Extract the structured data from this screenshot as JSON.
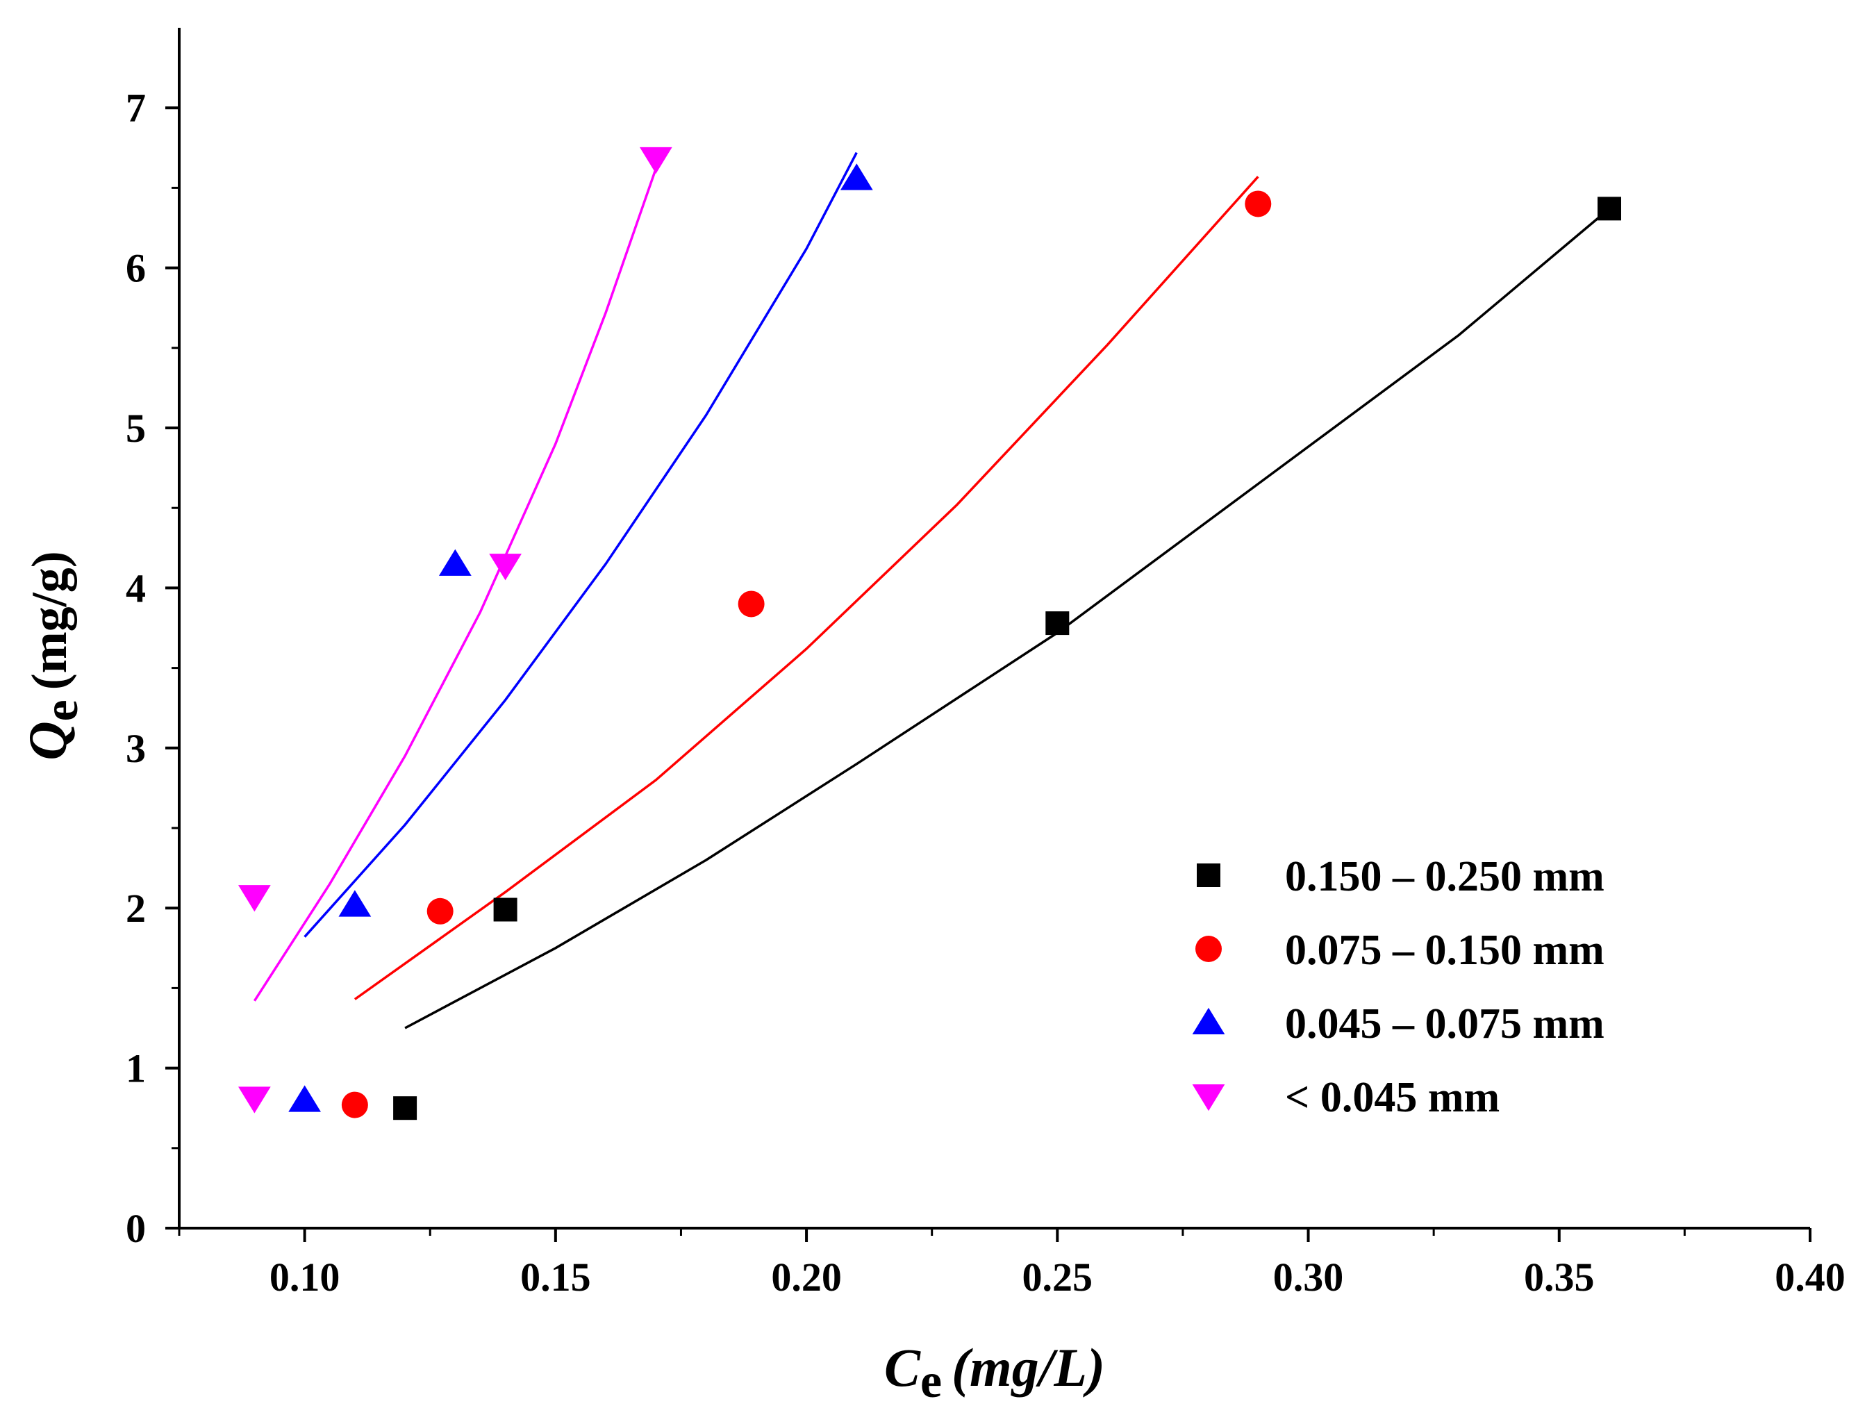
{
  "chart_data": {
    "type": "scatter",
    "title": "",
    "xlabel": {
      "symbol": "C",
      "subscript": "e",
      "unit": "(mg/L)"
    },
    "ylabel": {
      "symbol": "Q",
      "subscript": "e",
      "unit": "(mg/g)"
    },
    "xlim": [
      0.075,
      0.4
    ],
    "ylim": [
      0,
      7.5
    ],
    "xticks": [
      0.1,
      0.15,
      0.2,
      0.25,
      0.3,
      0.35,
      0.4
    ],
    "xtick_labels": [
      "0.10",
      "0.15",
      "0.20",
      "0.25",
      "0.30",
      "0.35",
      "0.40"
    ],
    "yticks": [
      0,
      1,
      2,
      3,
      4,
      5,
      6,
      7
    ],
    "ytick_labels": [
      "0",
      "1",
      "2",
      "3",
      "4",
      "5",
      "6",
      "7"
    ],
    "grid": false,
    "legend_position": "bottom-right",
    "series": [
      {
        "name": "0.150 – 0.250 mm",
        "color": "#000000",
        "marker": "square",
        "points": [
          {
            "x": 0.12,
            "y": 0.75
          },
          {
            "x": 0.14,
            "y": 1.99
          },
          {
            "x": 0.25,
            "y": 3.78
          },
          {
            "x": 0.36,
            "y": 6.37
          }
        ],
        "fit": [
          {
            "x": 0.12,
            "y": 1.25
          },
          {
            "x": 0.15,
            "y": 1.75
          },
          {
            "x": 0.18,
            "y": 2.3
          },
          {
            "x": 0.21,
            "y": 2.9
          },
          {
            "x": 0.25,
            "y": 3.72
          },
          {
            "x": 0.29,
            "y": 4.65
          },
          {
            "x": 0.33,
            "y": 5.58
          },
          {
            "x": 0.36,
            "y": 6.37
          }
        ]
      },
      {
        "name": "0.075 – 0.150 mm",
        "color": "#ff0000",
        "marker": "circle",
        "points": [
          {
            "x": 0.11,
            "y": 0.77
          },
          {
            "x": 0.127,
            "y": 1.98
          },
          {
            "x": 0.189,
            "y": 3.9
          },
          {
            "x": 0.29,
            "y": 6.4
          }
        ],
        "fit": [
          {
            "x": 0.11,
            "y": 1.43
          },
          {
            "x": 0.14,
            "y": 2.1
          },
          {
            "x": 0.17,
            "y": 2.8
          },
          {
            "x": 0.2,
            "y": 3.62
          },
          {
            "x": 0.23,
            "y": 4.52
          },
          {
            "x": 0.26,
            "y": 5.52
          },
          {
            "x": 0.29,
            "y": 6.57
          }
        ]
      },
      {
        "name": "0.045 – 0.075 mm",
        "color": "#0000ff",
        "marker": "triangle-up",
        "points": [
          {
            "x": 0.1,
            "y": 0.8
          },
          {
            "x": 0.11,
            "y": 2.02
          },
          {
            "x": 0.13,
            "y": 4.15
          },
          {
            "x": 0.21,
            "y": 6.56
          }
        ],
        "fit": [
          {
            "x": 0.1,
            "y": 1.82
          },
          {
            "x": 0.12,
            "y": 2.52
          },
          {
            "x": 0.14,
            "y": 3.3
          },
          {
            "x": 0.16,
            "y": 4.15
          },
          {
            "x": 0.18,
            "y": 5.08
          },
          {
            "x": 0.2,
            "y": 6.12
          },
          {
            "x": 0.21,
            "y": 6.72
          }
        ]
      },
      {
        "name": "< 0.045 mm",
        "color": "#ff00ff",
        "marker": "triangle-down",
        "points": [
          {
            "x": 0.09,
            "y": 0.81
          },
          {
            "x": 0.09,
            "y": 2.07
          },
          {
            "x": 0.14,
            "y": 4.14
          },
          {
            "x": 0.17,
            "y": 6.68
          }
        ],
        "fit": [
          {
            "x": 0.09,
            "y": 1.42
          },
          {
            "x": 0.105,
            "y": 2.15
          },
          {
            "x": 0.12,
            "y": 2.95
          },
          {
            "x": 0.135,
            "y": 3.85
          },
          {
            "x": 0.15,
            "y": 4.9
          },
          {
            "x": 0.16,
            "y": 5.72
          },
          {
            "x": 0.17,
            "y": 6.62
          }
        ]
      }
    ]
  }
}
